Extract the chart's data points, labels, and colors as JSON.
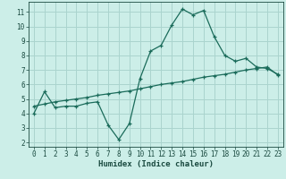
{
  "title": "",
  "xlabel": "Humidex (Indice chaleur)",
  "ylabel": "",
  "bg_color": "#cceee8",
  "grid_color": "#aad4ce",
  "line_color": "#1a6b5a",
  "curve1_x": [
    0,
    1,
    2,
    3,
    4,
    5,
    6,
    7,
    8,
    9,
    10,
    11,
    12,
    13,
    14,
    15,
    16,
    17,
    18,
    19,
    20,
    21,
    22,
    23
  ],
  "curve1_y": [
    4.0,
    5.5,
    4.4,
    4.5,
    4.5,
    4.7,
    4.8,
    3.2,
    2.2,
    3.3,
    6.4,
    8.3,
    8.7,
    10.1,
    11.2,
    10.8,
    11.1,
    9.3,
    8.0,
    7.6,
    7.8,
    7.2,
    7.1,
    6.7
  ],
  "curve2_x": [
    0,
    1,
    2,
    3,
    4,
    5,
    6,
    7,
    8,
    9,
    10,
    11,
    12,
    13,
    14,
    15,
    16,
    17,
    18,
    19,
    20,
    21,
    22,
    23
  ],
  "curve2_y": [
    4.5,
    4.65,
    4.8,
    4.9,
    5.0,
    5.1,
    5.25,
    5.35,
    5.45,
    5.55,
    5.7,
    5.85,
    6.0,
    6.1,
    6.2,
    6.35,
    6.5,
    6.6,
    6.7,
    6.85,
    7.0,
    7.1,
    7.2,
    6.65
  ],
  "xlim": [
    -0.5,
    23.5
  ],
  "ylim": [
    1.7,
    11.7
  ],
  "yticks": [
    2,
    3,
    4,
    5,
    6,
    7,
    8,
    9,
    10,
    11
  ],
  "xticks": [
    0,
    1,
    2,
    3,
    4,
    5,
    6,
    7,
    8,
    9,
    10,
    11,
    12,
    13,
    14,
    15,
    16,
    17,
    18,
    19,
    20,
    21,
    22,
    23
  ],
  "marker": "+",
  "markersize": 3.5,
  "linewidth": 0.9,
  "tick_fontsize": 5.5,
  "xlabel_fontsize": 6.5
}
